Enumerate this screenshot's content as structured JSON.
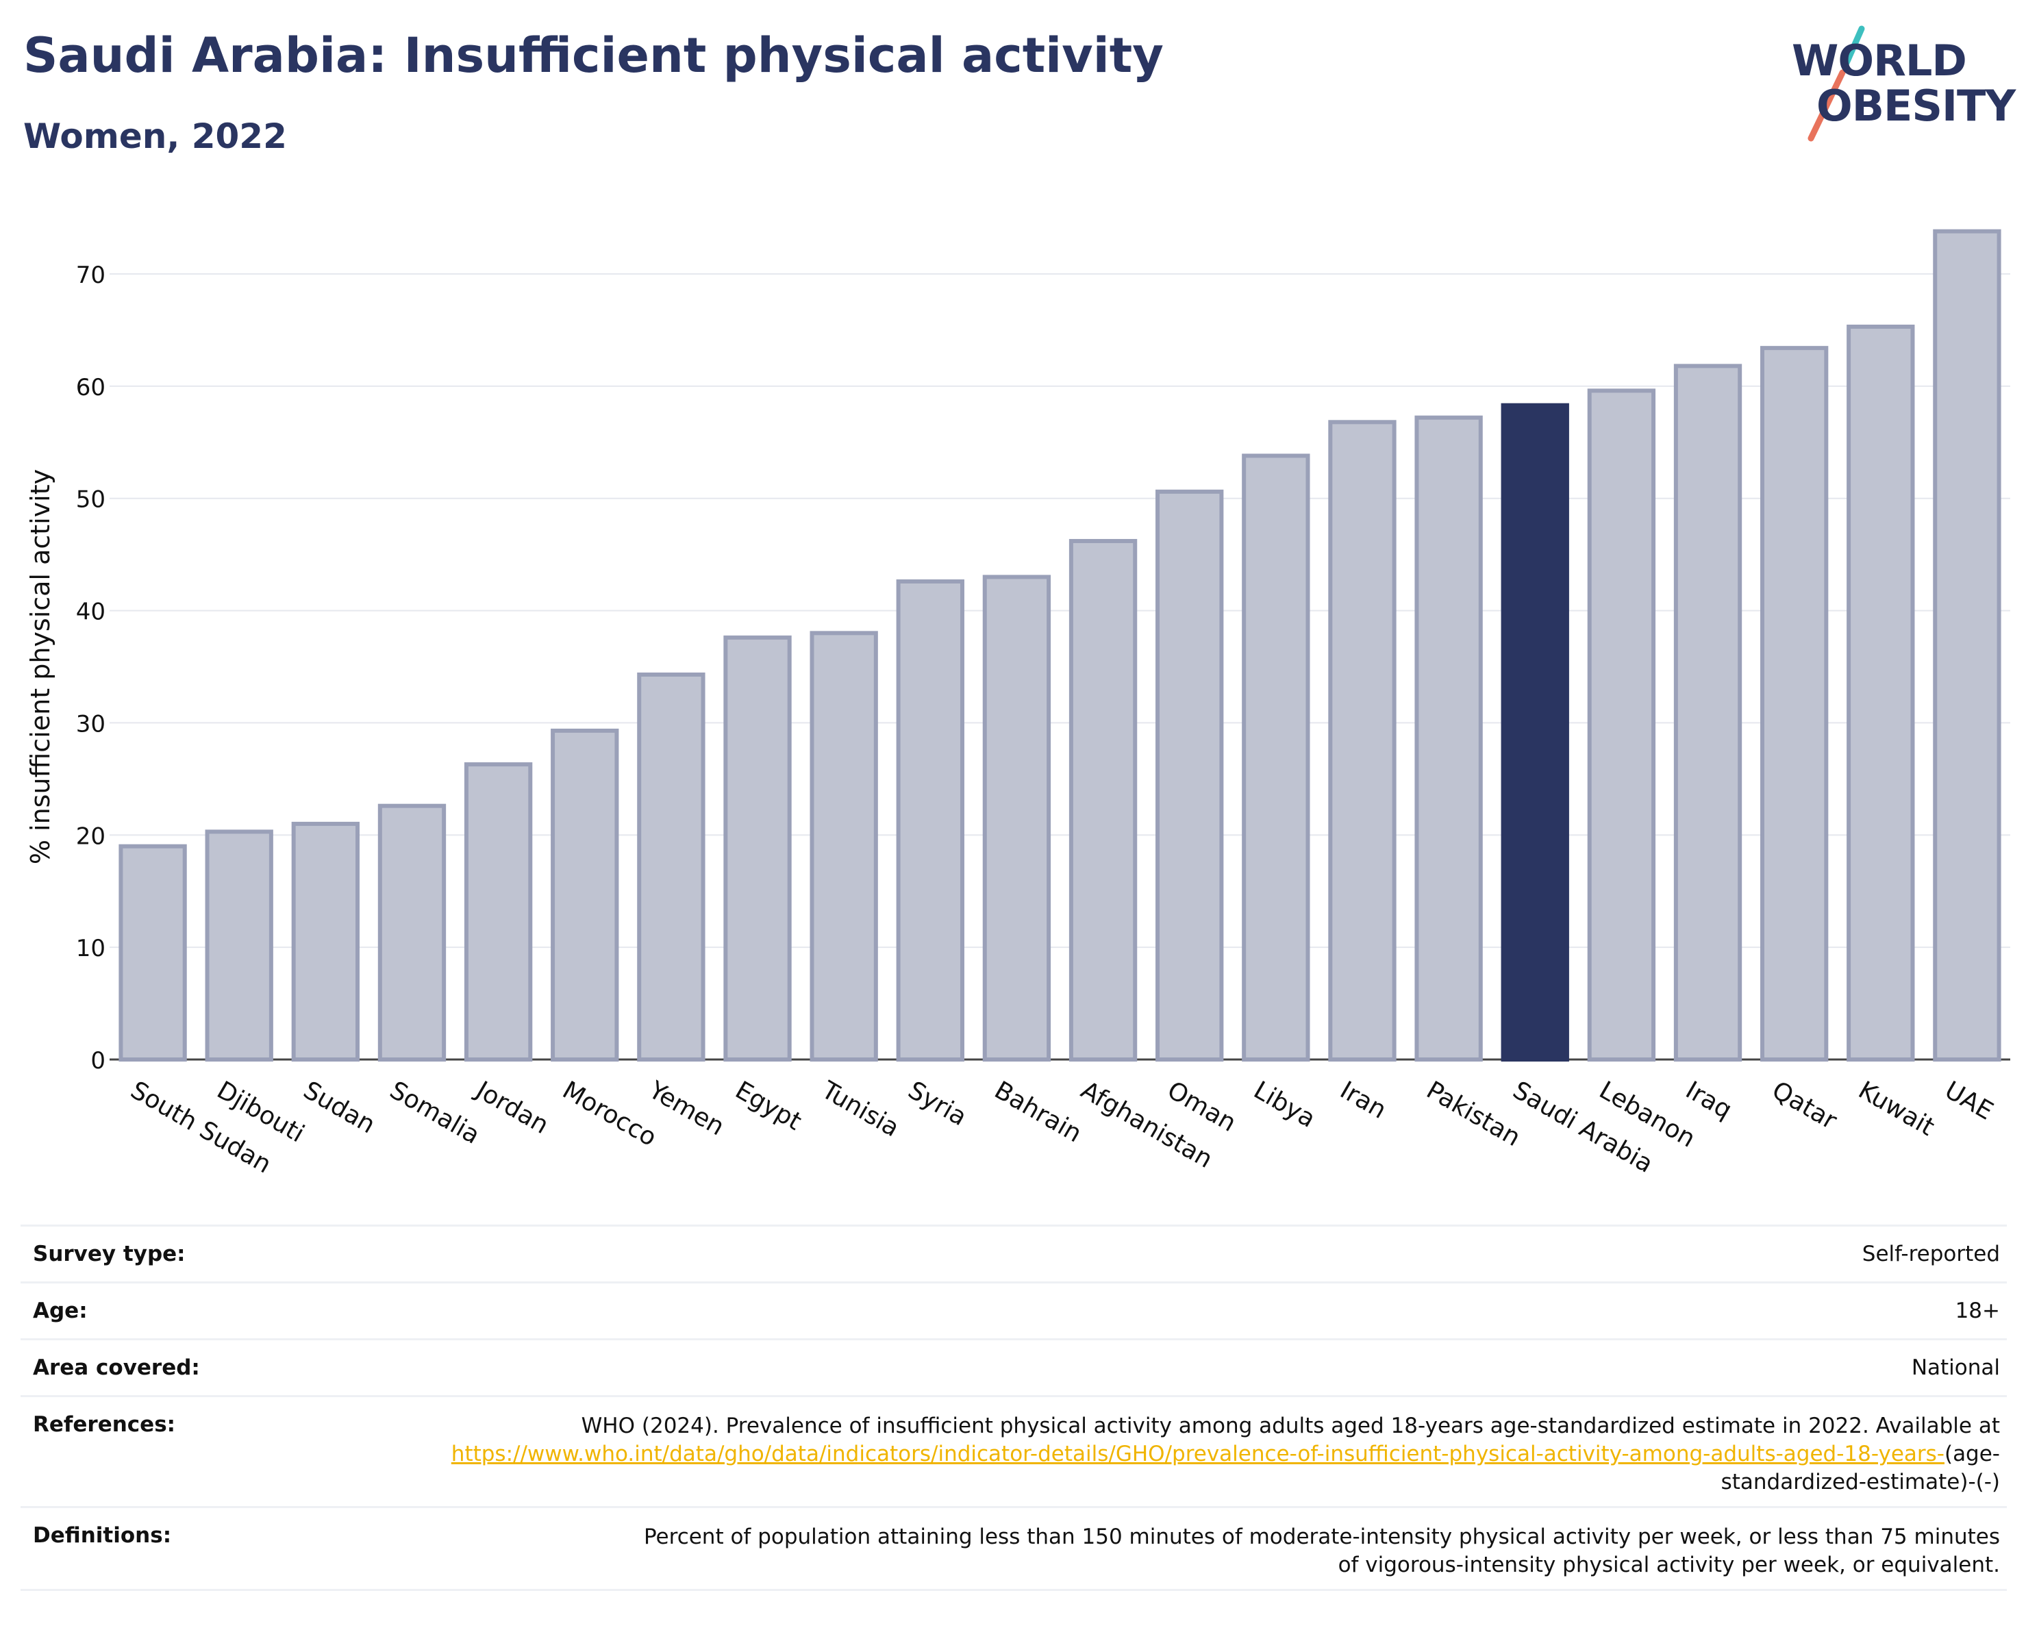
{
  "header": {
    "title": "Saudi Arabia: Insufficient physical activity",
    "subtitle": "Women, 2022"
  },
  "logo": {
    "line1": "WORLD",
    "line2": "OBESITY",
    "slash_colors": [
      "#3dbfbf",
      "#e8735c"
    ]
  },
  "colors": {
    "bar_default": "#bfc3d1",
    "bar_default_border": "#9aa0b8",
    "bar_highlight": "#2a3561",
    "grid": "#e6e8ee",
    "link": "#f0b400"
  },
  "chart_data": {
    "type": "bar",
    "ylabel": "% insufficient physical activity",
    "ylim": [
      0,
      75
    ],
    "yticks": [
      0,
      10,
      20,
      30,
      40,
      50,
      60,
      70
    ],
    "grid": true,
    "highlight": "Saudi Arabia",
    "categories": [
      "South Sudan",
      "Djibouti",
      "Sudan",
      "Somalia",
      "Jordan",
      "Morocco",
      "Yemen",
      "Egypt",
      "Tunisia",
      "Syria",
      "Bahrain",
      "Afghanistan",
      "Oman",
      "Libya",
      "Iran",
      "Pakistan",
      "Saudi Arabia",
      "Lebanon",
      "Iraq",
      "Qatar",
      "Kuwait",
      "UAE"
    ],
    "values": [
      19.0,
      20.3,
      21.0,
      22.6,
      26.3,
      29.3,
      34.3,
      37.6,
      38.0,
      42.6,
      43.0,
      46.2,
      50.6,
      53.8,
      56.8,
      57.2,
      58.3,
      59.6,
      61.8,
      63.4,
      65.3,
      73.8
    ]
  },
  "table": {
    "survey_type": {
      "label": "Survey type:",
      "value": "Self-reported"
    },
    "age": {
      "label": "Age:",
      "value": "18+"
    },
    "area": {
      "label": "Area covered:",
      "value": "National"
    },
    "references": {
      "label": "References:",
      "text_before": "WHO (2024). Prevalence of insufficient physical activity among adults aged 18-years age-standardized estimate in 2022. Available at ",
      "link_text": "https://www.who.int/data/gho/data/indicators/indicator-details/GHO/prevalence-of-insufficient-physical-activity-among-adults-aged-18-years-",
      "text_after": "(age-standardized-estimate)-(-)"
    },
    "definitions": {
      "label": "Definitions:",
      "value": "Percent of population attaining less than 150 minutes of moderate-intensity physical activity per week, or less than 75 minutes of vigorous-intensity physical activity per week, or equivalent."
    }
  }
}
